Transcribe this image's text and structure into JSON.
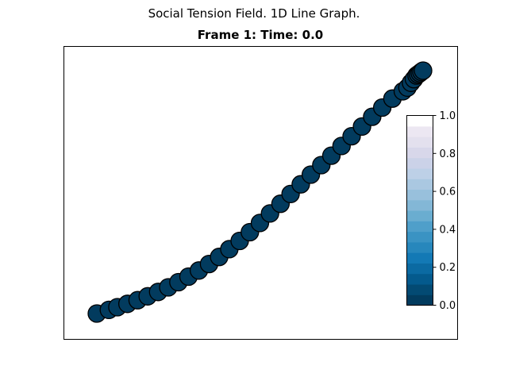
{
  "figure": {
    "suptitle": "Social Tension Field. 1D Line Graph.",
    "axes_title": "Frame 1: Time: 0.0"
  },
  "chart_data": {
    "type": "scatter",
    "title": "Frame 1: Time: 0.0",
    "suptitle": "Social Tension Field. 1D Line Graph.",
    "xlabel": "",
    "ylabel": "",
    "axis_ticks_visible": false,
    "grid": false,
    "marker_color": "#023b5e",
    "marker_edge_color": "#000000",
    "points": {
      "x": [
        0.0,
        0.037,
        0.063,
        0.094,
        0.125,
        0.156,
        0.188,
        0.219,
        0.25,
        0.281,
        0.313,
        0.344,
        0.375,
        0.406,
        0.438,
        0.469,
        0.5,
        0.531,
        0.563,
        0.594,
        0.625,
        0.656,
        0.688,
        0.719,
        0.75,
        0.781,
        0.813,
        0.844,
        0.875,
        0.906,
        0.938,
        0.952,
        0.963,
        0.972,
        0.98,
        0.985,
        0.99,
        0.995,
        1.0
      ],
      "y": [
        0.0,
        0.015,
        0.026,
        0.04,
        0.055,
        0.071,
        0.089,
        0.108,
        0.129,
        0.152,
        0.177,
        0.204,
        0.233,
        0.265,
        0.299,
        0.335,
        0.373,
        0.412,
        0.452,
        0.492,
        0.532,
        0.572,
        0.611,
        0.65,
        0.69,
        0.73,
        0.77,
        0.81,
        0.848,
        0.885,
        0.915,
        0.93,
        0.95,
        0.965,
        0.98,
        0.985,
        0.99,
        0.995,
        1.0
      ]
    },
    "colorbar": {
      "vmin": 0.0,
      "vmax": 1.0,
      "ticks": [
        "0.0",
        "0.2",
        "0.4",
        "0.6",
        "0.8",
        "1.0"
      ],
      "colors": [
        "#023b5e",
        "#034a73",
        "#045a8d",
        "#0b6aa2",
        "#1379b5",
        "#2787bc",
        "#3a93c3",
        "#4f9fca",
        "#6aadd0",
        "#83b7d6",
        "#98c0dc",
        "#aac8e1",
        "#bdd0e7",
        "#cbd2e8",
        "#d8d7ea",
        "#e3e0ee",
        "#ece7f2",
        "#ffffff"
      ]
    }
  }
}
